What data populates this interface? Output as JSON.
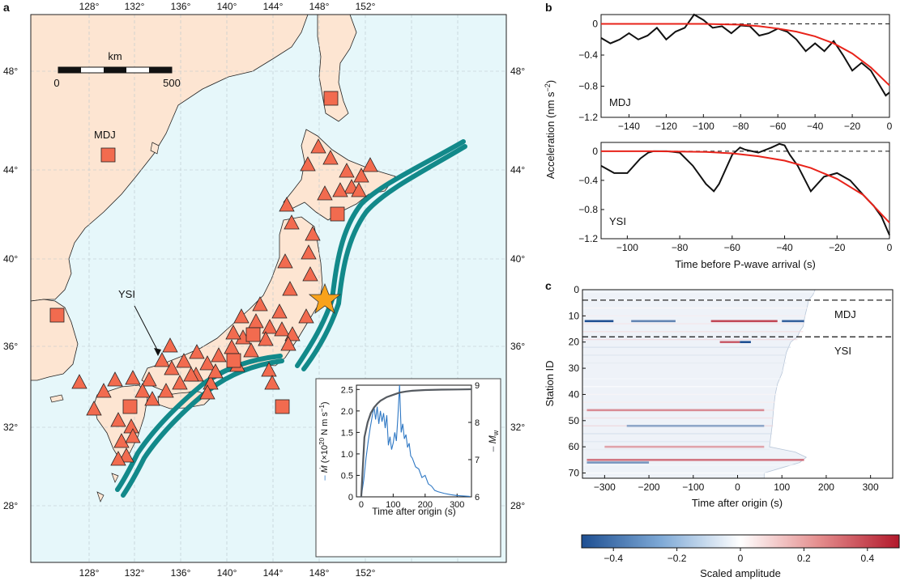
{
  "colors": {
    "land": "#fde5d2",
    "sea": "#e6f7fa",
    "trench": "#12898a",
    "station": "#f26b4f",
    "star": "#f9a21b",
    "model_red": "#e8231a",
    "obs_black": "#111111",
    "mdot_blue": "#2f78c4",
    "mw_gray": "#555a60",
    "cmap_neg": "#1e4f92",
    "cmap_pos": "#b2182b"
  },
  "panel_labels": {
    "a": "a",
    "b": "b",
    "c": "c"
  },
  "map": {
    "lon_labels": [
      "128°",
      "132°",
      "136°",
      "140°",
      "144°",
      "148°",
      "152°"
    ],
    "lat_labels": [
      "48°",
      "44°",
      "40°",
      "36°",
      "32°",
      "28°"
    ],
    "scalebar": {
      "unit": "km",
      "start": "0",
      "end": "500"
    },
    "station_labels": {
      "mdj": "MDJ",
      "ysi": "YSI"
    }
  },
  "chart_data": [
    {
      "id": "inset_source_time_function",
      "type": "line",
      "xlabel": "Time after origin (s)",
      "ylabel_left_prefix": "– ",
      "ylabel_left_symbol": "Ṁ",
      "ylabel_left_unit": "(×10",
      "ylabel_left_exp": "20",
      "ylabel_left_tail": " N m s",
      "ylabel_left_tail_exp": "−1",
      "ylabel_left_close": ")",
      "ylabel_right_prefix": "– ",
      "ylabel_right": "M",
      "ylabel_right_sub": "w",
      "xticks": [
        "0",
        "100",
        "200",
        "300"
      ],
      "yticks_left": [
        "0",
        "0.5",
        "1.0",
        "1.5",
        "2.0",
        "2.5"
      ],
      "yticks_right": [
        "6",
        "7",
        "8",
        "9"
      ],
      "xlim": [
        -15,
        345
      ],
      "ylim_left": [
        0,
        2.6
      ],
      "ylim_right": [
        6,
        9
      ],
      "series": [
        {
          "name": "moment rate (×10^20 N m s^-1)",
          "x": [
            0,
            8,
            15,
            22,
            28,
            35,
            40,
            45,
            50,
            55,
            60,
            65,
            70,
            75,
            80,
            85,
            90,
            95,
            100,
            105,
            110,
            115,
            120,
            125,
            130,
            135,
            140,
            145,
            150,
            155,
            160,
            170,
            180,
            190,
            200,
            210,
            220,
            230,
            240,
            260,
            280,
            300,
            320,
            340
          ],
          "y": [
            0,
            0.4,
            0.9,
            1.3,
            1.6,
            1.9,
            2.1,
            1.8,
            2.1,
            1.7,
            2.0,
            1.75,
            1.95,
            1.6,
            1.9,
            1.2,
            1.4,
            1.1,
            1.25,
            1.5,
            1.3,
            1.9,
            2.6,
            1.5,
            1.7,
            1.35,
            1.45,
            1.15,
            1.25,
            0.95,
            0.9,
            0.7,
            0.65,
            0.45,
            0.5,
            0.3,
            0.25,
            0.15,
            0.12,
            0.08,
            0.05,
            0.03,
            0.02,
            0.01
          ]
        },
        {
          "name": "Mw",
          "x": [
            0,
            10,
            20,
            30,
            40,
            50,
            60,
            80,
            100,
            120,
            140,
            160,
            200,
            250,
            300,
            345
          ],
          "y": [
            6.0,
            7.6,
            8.0,
            8.25,
            8.4,
            8.5,
            8.58,
            8.68,
            8.74,
            8.8,
            8.83,
            8.85,
            8.87,
            8.88,
            8.885,
            8.89
          ]
        }
      ]
    },
    {
      "id": "mdj_acceleration",
      "type": "line",
      "station": "MDJ",
      "xticks": [
        "−140",
        "−120",
        "−100",
        "−80",
        "−60",
        "−40",
        "−20",
        "0"
      ],
      "yticks": [
        "0",
        "−0.4",
        "−0.8",
        "−1.2"
      ],
      "xlim": [
        -155,
        0
      ],
      "ylim": [
        -1.2,
        0.12
      ],
      "series": [
        {
          "name": "observed",
          "x": [
            -155,
            -150,
            -145,
            -140,
            -135,
            -130,
            -125,
            -120,
            -115,
            -110,
            -105,
            -100,
            -95,
            -90,
            -85,
            -80,
            -75,
            -70,
            -65,
            -60,
            -55,
            -50,
            -45,
            -40,
            -35,
            -30,
            -25,
            -20,
            -15,
            -10,
            -5,
            -2,
            0
          ],
          "y": [
            -0.18,
            -0.25,
            -0.2,
            -0.12,
            -0.2,
            -0.15,
            -0.05,
            -0.2,
            -0.1,
            -0.05,
            0.12,
            0.05,
            -0.05,
            -0.03,
            -0.12,
            -0.02,
            -0.03,
            -0.15,
            -0.12,
            -0.06,
            -0.1,
            -0.2,
            -0.35,
            -0.25,
            -0.35,
            -0.22,
            -0.4,
            -0.6,
            -0.5,
            -0.6,
            -0.8,
            -0.92,
            -0.88
          ]
        },
        {
          "name": "model",
          "x": [
            -155,
            -140,
            -120,
            -100,
            -80,
            -70,
            -60,
            -50,
            -40,
            -30,
            -20,
            -10,
            0
          ],
          "y": [
            0,
            0,
            0,
            0,
            -0.01,
            -0.03,
            -0.06,
            -0.1,
            -0.16,
            -0.25,
            -0.38,
            -0.56,
            -0.79
          ]
        }
      ]
    },
    {
      "id": "ysi_acceleration",
      "type": "line",
      "station": "YSI",
      "xlabel": "Time before P-wave arrival (s)",
      "xticks": [
        "−100",
        "−80",
        "−60",
        "−40",
        "−20",
        "0"
      ],
      "yticks": [
        "0",
        "−0.4",
        "−0.8",
        "−1.2"
      ],
      "xlim": [
        -110,
        0
      ],
      "ylim": [
        -1.2,
        0.12
      ],
      "series": [
        {
          "name": "observed",
          "x": [
            -110,
            -105,
            -100,
            -95,
            -92,
            -90,
            -85,
            -80,
            -75,
            -70,
            -67,
            -65,
            -60,
            -57,
            -55,
            -50,
            -45,
            -42,
            -40,
            -38,
            -35,
            -30,
            -25,
            -20,
            -15,
            -10,
            -6,
            -3,
            0
          ],
          "y": [
            -0.2,
            -0.3,
            -0.3,
            -0.1,
            -0.02,
            0.0,
            0.0,
            -0.02,
            -0.2,
            -0.45,
            -0.55,
            -0.45,
            -0.05,
            0.05,
            0.02,
            -0.02,
            0.05,
            0.1,
            0.08,
            -0.05,
            -0.2,
            -0.55,
            -0.35,
            -0.3,
            -0.4,
            -0.6,
            -0.75,
            -0.9,
            -1.15
          ]
        },
        {
          "name": "model",
          "x": [
            -110,
            -90,
            -70,
            -60,
            -50,
            -40,
            -30,
            -20,
            -10,
            0
          ],
          "y": [
            0,
            0,
            -0.01,
            -0.03,
            -0.07,
            -0.13,
            -0.23,
            -0.38,
            -0.6,
            -0.98
          ]
        }
      ]
    },
    {
      "id": "station_heatmap",
      "type": "heatmap",
      "xlabel": "Time after origin (s)",
      "ylabel": "Station ID",
      "xticks": [
        "−300",
        "−200",
        "−100",
        "0",
        "100",
        "200",
        "300"
      ],
      "yticks": [
        "0",
        "10",
        "20",
        "30",
        "40",
        "50",
        "60",
        "70"
      ],
      "xlim": [
        -350,
        350
      ],
      "ylim": [
        0,
        72
      ],
      "group_labels": [
        "MDJ",
        "YSI"
      ],
      "group_boundaries": [
        4,
        18
      ],
      "colorbar": {
        "label": "Scaled amplitude",
        "ticks": [
          "−0.4",
          "−0.2",
          "0",
          "0.2",
          "0.4"
        ],
        "range": [
          -0.5,
          0.5
        ]
      },
      "edge_times": [
        [
          0,
          175
        ],
        [
          2,
          170
        ],
        [
          4,
          160
        ],
        [
          6,
          158
        ],
        [
          8,
          155
        ],
        [
          10,
          152
        ],
        [
          12,
          150
        ],
        [
          14,
          148
        ],
        [
          16,
          140
        ],
        [
          18,
          135
        ],
        [
          20,
          120
        ],
        [
          24,
          110
        ],
        [
          28,
          105
        ],
        [
          32,
          100
        ],
        [
          36,
          90
        ],
        [
          40,
          85
        ],
        [
          44,
          82
        ],
        [
          48,
          80
        ],
        [
          52,
          78
        ],
        [
          56,
          75
        ],
        [
          60,
          72
        ],
        [
          62,
          130
        ],
        [
          64,
          155
        ],
        [
          66,
          140
        ],
        [
          68,
          100
        ],
        [
          70,
          60
        ],
        [
          72,
          60
        ]
      ],
      "strong_rows": [
        {
          "station": 12,
          "amplitude": -0.5,
          "t0": -345,
          "t1": -280
        },
        {
          "station": 12,
          "amplitude": -0.35,
          "t0": -240,
          "t1": -140
        },
        {
          "station": 12,
          "amplitude": 0.4,
          "t0": -60,
          "t1": 90
        },
        {
          "station": 12,
          "amplitude": -0.45,
          "t0": 100,
          "t1": 150
        },
        {
          "station": 20,
          "amplitude": -0.5,
          "t0": 5,
          "t1": 30
        },
        {
          "station": 20,
          "amplitude": 0.35,
          "t0": -40,
          "t1": 5
        },
        {
          "station": 46,
          "amplitude": 0.25,
          "t0": -340,
          "t1": 60
        },
        {
          "station": 52,
          "amplitude": -0.25,
          "t0": -250,
          "t1": 60
        },
        {
          "station": 60,
          "amplitude": 0.2,
          "t0": -300,
          "t1": 60
        },
        {
          "station": 65,
          "amplitude": 0.3,
          "t0": -340,
          "t1": 150
        },
        {
          "station": 66,
          "amplitude": -0.3,
          "t0": -340,
          "t1": -200
        }
      ]
    }
  ]
}
